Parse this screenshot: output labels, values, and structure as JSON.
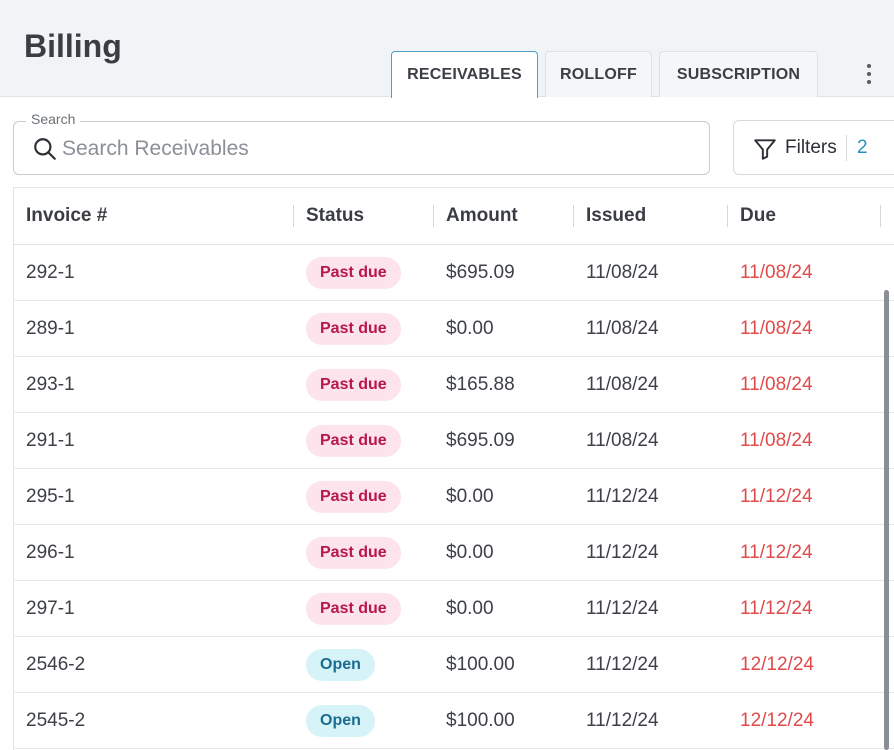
{
  "header": {
    "title": "Billing",
    "tabs": [
      {
        "label": "RECEIVABLES",
        "active": true
      },
      {
        "label": "ROLLOFF",
        "active": false
      },
      {
        "label": "SUBSCRIPTION",
        "active": false
      }
    ],
    "more_icon": "kebab-vertical-icon"
  },
  "search": {
    "label": "Search",
    "placeholder": "Search Receivables",
    "value": "",
    "icon": "search-icon"
  },
  "filters": {
    "label": "Filters",
    "count": "2",
    "icon": "funnel-icon"
  },
  "table": {
    "columns": [
      "Invoice #",
      "Status",
      "Amount",
      "Issued",
      "Due"
    ],
    "rows": [
      {
        "invoice": "292-1",
        "status": "Past due",
        "status_kind": "past",
        "amount": "$695.09",
        "issued": "11/08/24",
        "due": "11/08/24"
      },
      {
        "invoice": "289-1",
        "status": "Past due",
        "status_kind": "past",
        "amount": "$0.00",
        "issued": "11/08/24",
        "due": "11/08/24"
      },
      {
        "invoice": "293-1",
        "status": "Past due",
        "status_kind": "past",
        "amount": "$165.88",
        "issued": "11/08/24",
        "due": "11/08/24"
      },
      {
        "invoice": "291-1",
        "status": "Past due",
        "status_kind": "past",
        "amount": "$695.09",
        "issued": "11/08/24",
        "due": "11/08/24"
      },
      {
        "invoice": "295-1",
        "status": "Past due",
        "status_kind": "past",
        "amount": "$0.00",
        "issued": "11/12/24",
        "due": "11/12/24"
      },
      {
        "invoice": "296-1",
        "status": "Past due",
        "status_kind": "past",
        "amount": "$0.00",
        "issued": "11/12/24",
        "due": "11/12/24"
      },
      {
        "invoice": "297-1",
        "status": "Past due",
        "status_kind": "past",
        "amount": "$0.00",
        "issued": "11/12/24",
        "due": "11/12/24"
      },
      {
        "invoice": "2546-2",
        "status": "Open",
        "status_kind": "open",
        "amount": "$100.00",
        "issued": "11/12/24",
        "due": "12/12/24"
      },
      {
        "invoice": "2545-2",
        "status": "Open",
        "status_kind": "open",
        "amount": "$100.00",
        "issued": "11/12/24",
        "due": "12/12/24"
      }
    ]
  },
  "colors": {
    "accent": "#2a8fbf",
    "due_text": "#e04a4a",
    "past_due_bg": "#fde3ec",
    "past_due_text": "#b5174f",
    "open_bg": "#d6f4f7",
    "open_text": "#1a6c93"
  }
}
